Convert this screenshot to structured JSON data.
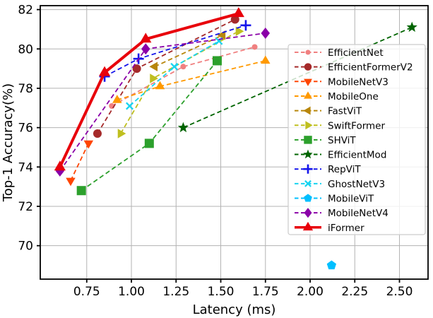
{
  "chart_data": {
    "type": "line",
    "title": "",
    "xlabel": "Latency (ms)",
    "ylabel": "Top-1 Accuracy(%)",
    "xlim": [
      0.49,
      2.66
    ],
    "ylim": [
      68.3,
      82.2
    ],
    "grid": true,
    "legend_position": "center-right",
    "xticks": {
      "values": [
        0.75,
        1.0,
        1.25,
        1.5,
        1.75,
        2.0,
        2.25,
        2.5
      ],
      "labels": [
        "0.75",
        "1.00",
        "1.25",
        "1.50",
        "1.75",
        "2.00",
        "2.25",
        "2.50"
      ]
    },
    "yticks": {
      "values": [
        70,
        72,
        74,
        76,
        78,
        80,
        82
      ],
      "labels": [
        "70",
        "72",
        "74",
        "76",
        "78",
        "80",
        "82"
      ]
    },
    "series": [
      {
        "name": "EfficientNet",
        "color": "#F08080",
        "marker": "circle",
        "marker_size": 4,
        "line_style": "dashed",
        "line_width": 1.8,
        "points": [
          [
            0.89,
            77.1
          ],
          [
            1.29,
            79.1
          ],
          [
            1.69,
            80.1
          ]
        ]
      },
      {
        "name": "EfficientFormerV2",
        "color": "#A52A2A",
        "marker": "circle",
        "marker_size": 6,
        "line_style": "dashed",
        "line_width": 1.8,
        "points": [
          [
            0.81,
            75.7
          ],
          [
            1.03,
            79.0
          ],
          [
            1.58,
            81.5
          ]
        ]
      },
      {
        "name": "MobileNetV3",
        "color": "#FF4500",
        "marker": "triangle-down",
        "marker_size": 7.5,
        "line_style": "dashed",
        "line_width": 1.8,
        "points": [
          [
            0.66,
            73.3
          ],
          [
            0.76,
            75.2
          ]
        ]
      },
      {
        "name": "MobileOne",
        "color": "#FF9900",
        "marker": "triangle-up",
        "marker_size": 7.5,
        "line_style": "dashed",
        "line_width": 1.8,
        "points": [
          [
            0.92,
            77.4
          ],
          [
            1.16,
            78.1
          ],
          [
            1.75,
            79.4
          ]
        ]
      },
      {
        "name": "FastViT",
        "color": "#B8860B",
        "marker": "triangle-left",
        "marker_size": 7.5,
        "line_style": "dashed",
        "line_width": 1.8,
        "points": [
          [
            1.13,
            79.1
          ],
          [
            1.51,
            80.7
          ]
        ]
      },
      {
        "name": "SwiftFormer",
        "color": "#BFBF1F",
        "marker": "triangle-right",
        "marker_size": 7.5,
        "line_style": "dashed",
        "line_width": 1.8,
        "points": [
          [
            0.94,
            75.7
          ],
          [
            1.12,
            78.5
          ],
          [
            1.6,
            80.9
          ]
        ]
      },
      {
        "name": "SHViT",
        "color": "#2CA02C",
        "marker": "square",
        "marker_size": 6.5,
        "line_style": "dashed",
        "line_width": 1.8,
        "points": [
          [
            0.72,
            72.8
          ],
          [
            1.1,
            75.2
          ],
          [
            1.48,
            79.4
          ]
        ]
      },
      {
        "name": "EfficientMod",
        "color": "#006400",
        "marker": "star",
        "marker_size": 8,
        "line_style": "dashed",
        "line_width": 1.8,
        "points": [
          [
            1.29,
            76.0
          ],
          [
            2.57,
            81.1
          ]
        ]
      },
      {
        "name": "RepViT",
        "color": "#1414EB",
        "marker": "plus",
        "marker_size": 7.5,
        "line_style": "dashed",
        "line_width": 1.8,
        "points": [
          [
            0.85,
            78.6
          ],
          [
            1.04,
            79.5
          ],
          [
            1.64,
            81.2
          ]
        ]
      },
      {
        "name": "GhostNetV3",
        "color": "#17D4F0",
        "marker": "x",
        "marker_size": 6.5,
        "line_style": "dashed",
        "line_width": 1.8,
        "points": [
          [
            0.99,
            77.1
          ],
          [
            1.24,
            79.1
          ],
          [
            1.49,
            80.4
          ]
        ]
      },
      {
        "name": "MobileViT",
        "color": "#00BFFF",
        "marker": "pentagon",
        "marker_size": 7,
        "line_style": "dashed",
        "line_width": 1.8,
        "points": [
          [
            2.12,
            69.0
          ]
        ]
      },
      {
        "name": "MobileNetV4",
        "color": "#8A00A8",
        "marker": "diamond",
        "marker_size": 8,
        "line_style": "dashed",
        "line_width": 1.8,
        "points": [
          [
            0.6,
            73.8
          ],
          [
            1.08,
            80.0
          ],
          [
            1.75,
            80.8
          ]
        ]
      },
      {
        "name": "iFormer",
        "color": "#E8000B",
        "marker": "triangle-up",
        "marker_size": 9,
        "line_style": "solid",
        "line_width": 4,
        "points": [
          [
            0.6,
            74.0
          ],
          [
            0.85,
            78.8
          ],
          [
            1.08,
            80.5
          ],
          [
            1.6,
            81.8
          ]
        ]
      }
    ],
    "legend": {
      "items": [
        "EfficientNet",
        "EfficientFormerV2",
        "MobileNetV3",
        "MobileOne",
        "FastViT",
        "SwiftFormer",
        "SHViT",
        "EfficientMod",
        "RepViT",
        "GhostNetV3",
        "MobileViT",
        "MobileNetV4",
        "iFormer"
      ],
      "border_color": "#CCCCCC",
      "background": "rgba(255,255,255,0.8)",
      "text_color": "#000000"
    },
    "grid_color": "#B3B3B3",
    "axis_color": "#000000"
  }
}
